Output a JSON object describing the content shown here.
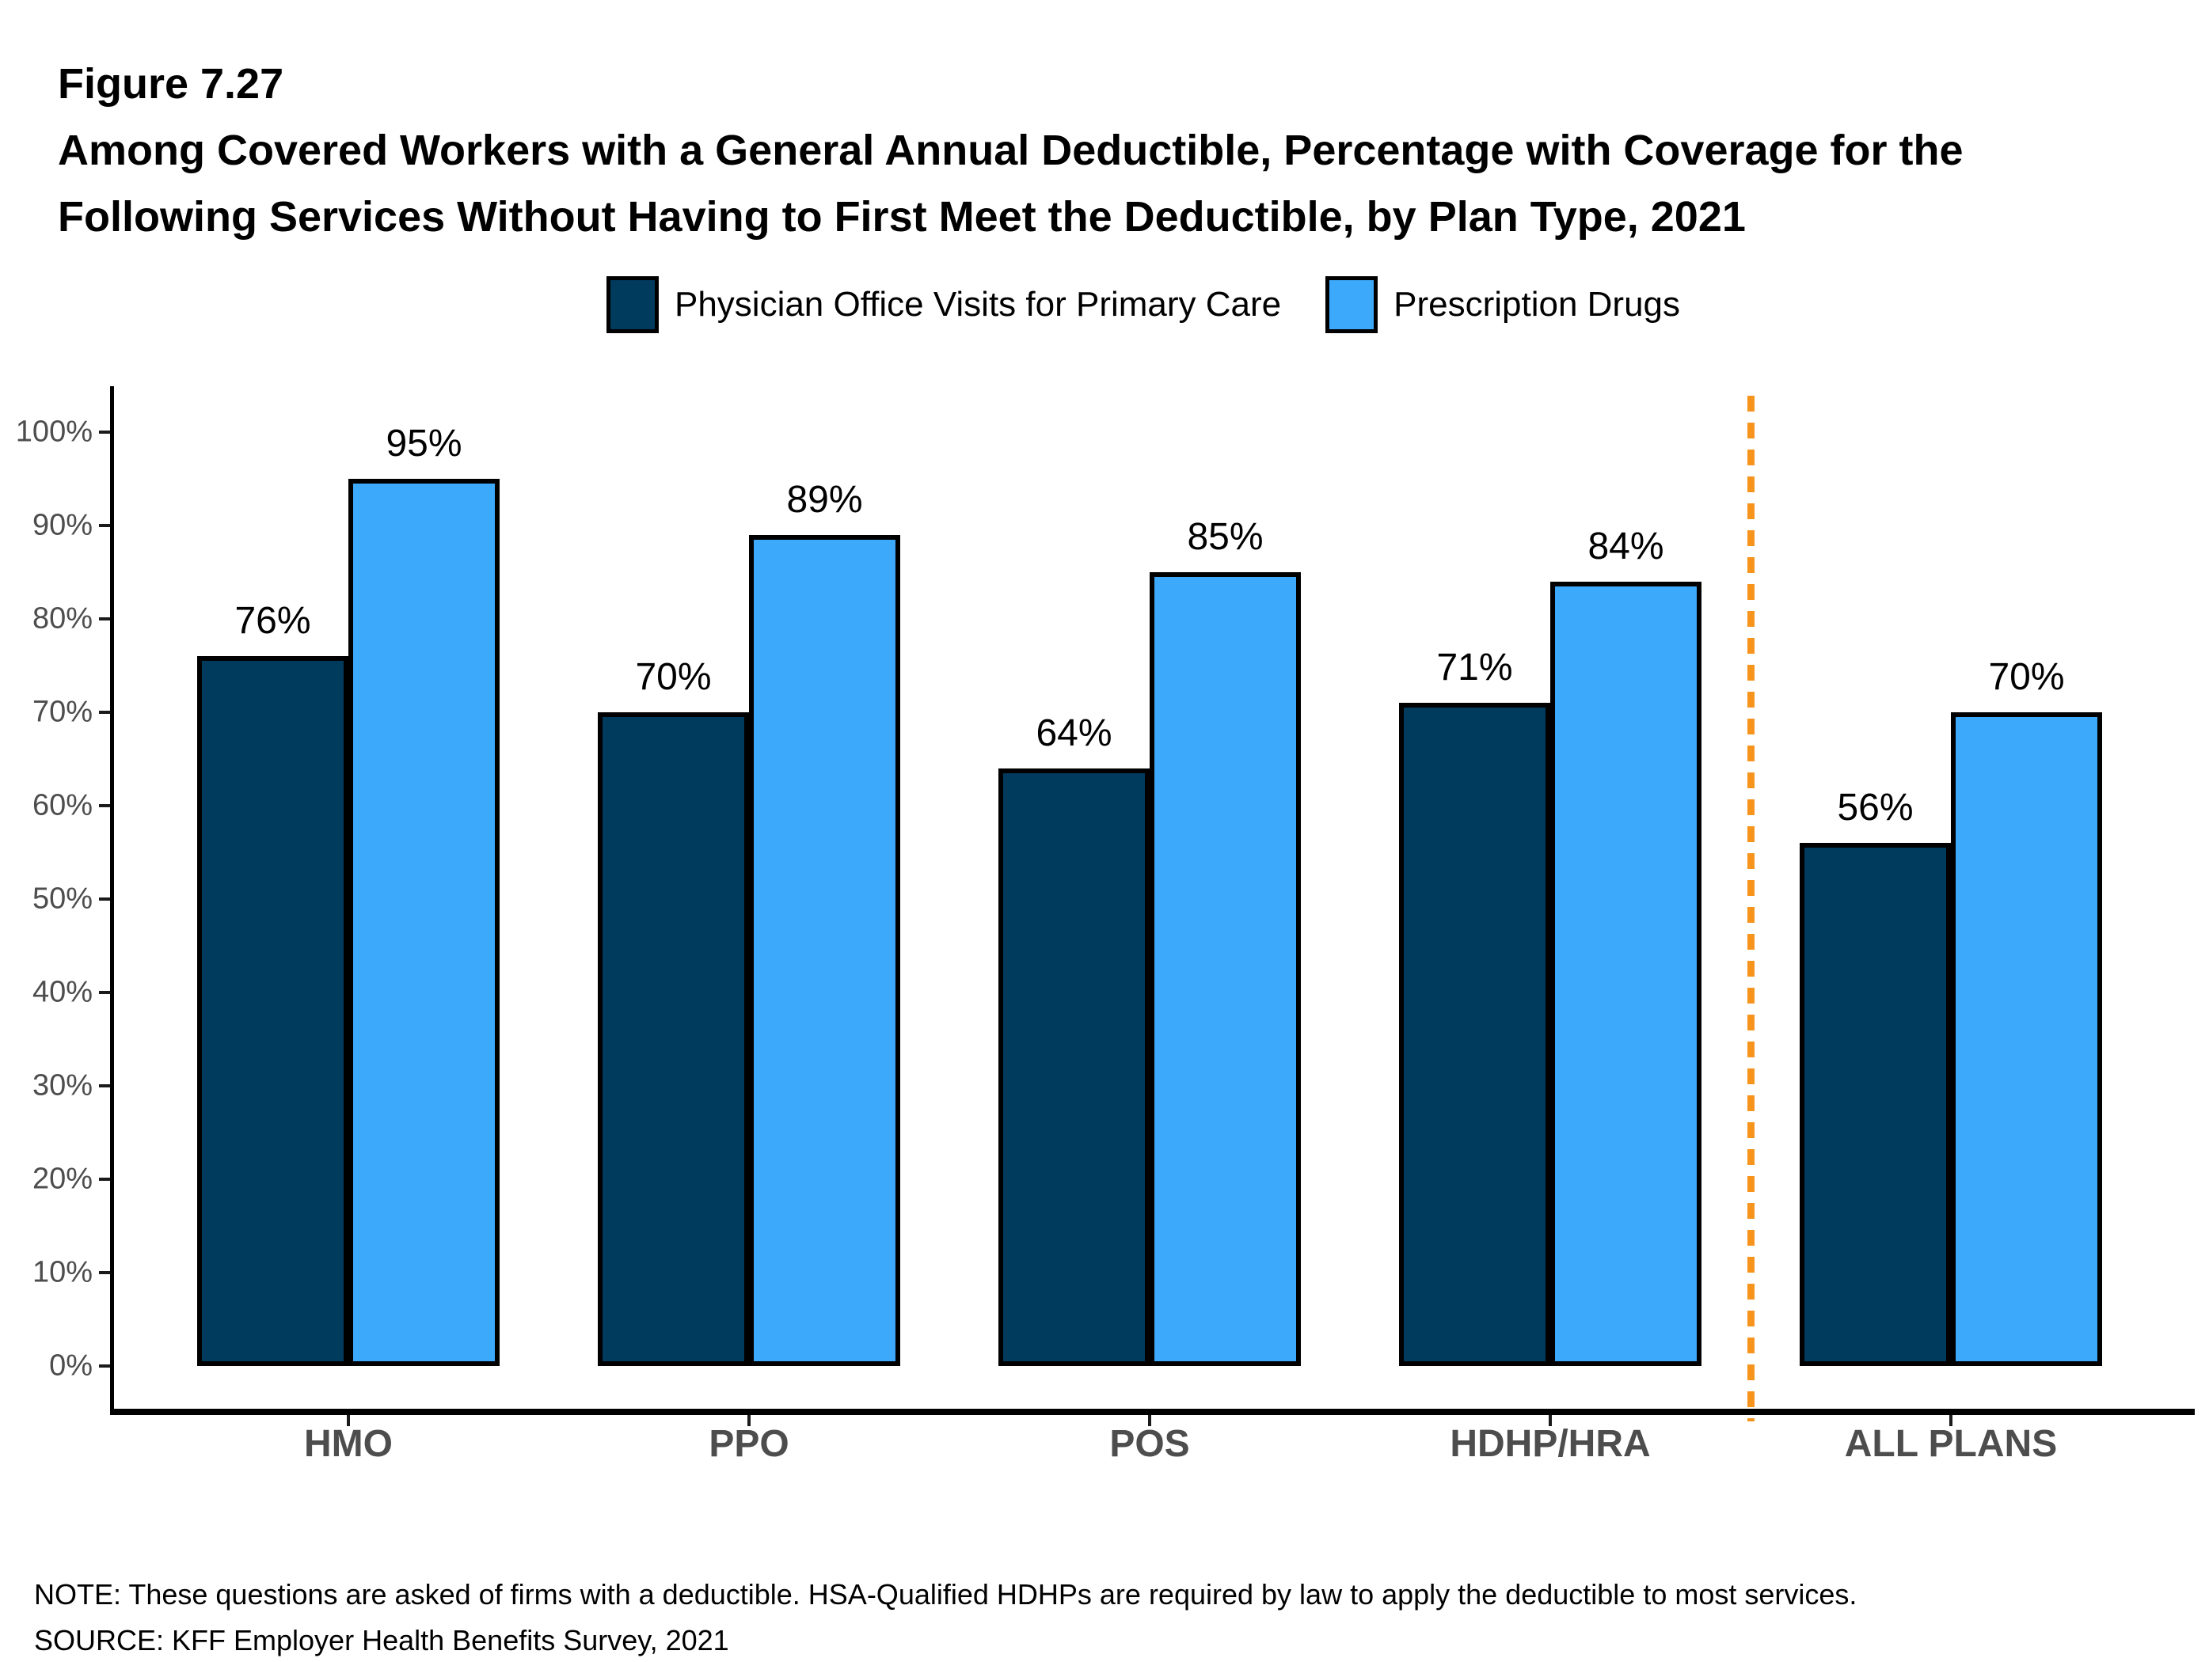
{
  "header": {
    "figure_label": "Figure 7.27",
    "title_line1": "Among Covered Workers with a General Annual Deductible, Percentage with Coverage for the",
    "title_line2": "Following Services Without Having to First Meet the Deductible, by Plan Type, 2021"
  },
  "chart_data": {
    "type": "bar",
    "categories": [
      "HMO",
      "PPO",
      "POS",
      "HDHP/HRA",
      "ALL PLANS"
    ],
    "series": [
      {
        "name": "Physician Office Visits for Primary Care",
        "color": "#003A5C",
        "values": [
          76,
          70,
          64,
          71,
          56
        ]
      },
      {
        "name": "Prescription Drugs",
        "color": "#3DA9FA",
        "values": [
          95,
          89,
          85,
          84,
          70
        ]
      }
    ],
    "value_suffix": "%",
    "yticks": [
      "0%",
      "10%",
      "20%",
      "30%",
      "40%",
      "50%",
      "60%",
      "70%",
      "80%",
      "90%",
      "100%"
    ],
    "ylim": [
      0,
      100
    ],
    "grid": false,
    "legend_position": "top",
    "bar_outline_color": "#000000",
    "separator_before_category": "ALL PLANS",
    "separator_color": "#F7941D",
    "axis_color": "#000000",
    "tick_label_color": "#4d4d4d"
  },
  "footer": {
    "note": "NOTE: These questions are asked of firms with a deductible. HSA-Qualified HDHPs are required by law to apply the deductible to most services.",
    "source": "SOURCE: KFF Employer Health Benefits Survey, 2021"
  }
}
